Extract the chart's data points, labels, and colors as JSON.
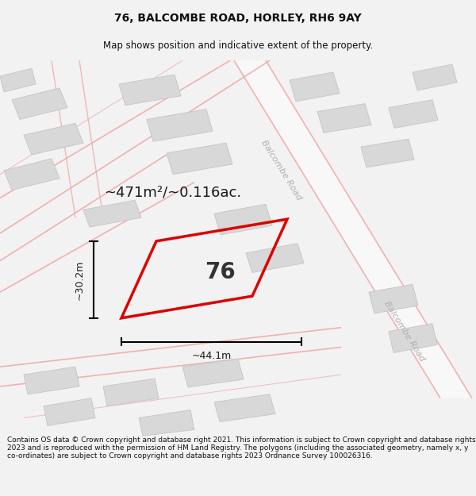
{
  "title_line1": "76, BALCOMBE ROAD, HORLEY, RH6 9AY",
  "title_line2": "Map shows position and indicative extent of the property.",
  "footer_text": "Contains OS data © Crown copyright and database right 2021. This information is subject to Crown copyright and database rights 2023 and is reproduced with the permission of HM Land Registry. The polygons (including the associated geometry, namely x, y co-ordinates) are subject to Crown copyright and database rights 2023 Ordnance Survey 100026316.",
  "area_label": "~471m²/~0.116ac.",
  "width_label": "~44.1m",
  "height_label": "~30.2m",
  "plot_number": "76",
  "bg_color": "#f2f2f2",
  "map_bg": "#f9f9f9",
  "road_fill": "#ffffff",
  "road_line_color": "#f0aaaa",
  "building_color": "#d8d8d8",
  "building_outline": "#c8c8c8",
  "plot_edge_color": "#dd0000",
  "road_label_color": "#b0b0b0",
  "title_fontsize": 10,
  "subtitle_fontsize": 8.5,
  "footer_fontsize": 6.5,
  "area_fontsize": 13,
  "dim_fontsize": 9,
  "plot_num_fontsize": 20,
  "road_label_fontsize": 8
}
